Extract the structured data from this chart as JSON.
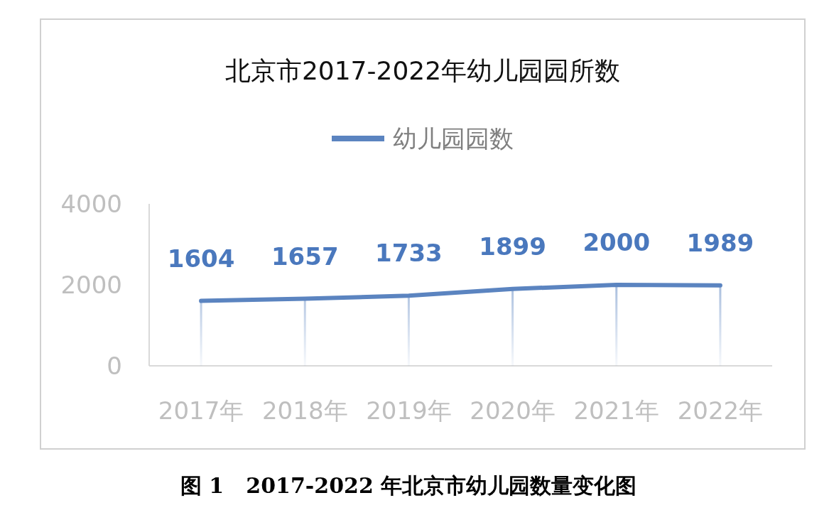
{
  "chart_data": {
    "type": "line",
    "title": "北京市2017-2022年幼儿园园所数",
    "categories": [
      "2017年",
      "2018年",
      "2019年",
      "2020年",
      "2021年",
      "2022年"
    ],
    "series": [
      {
        "name": "幼儿园园数",
        "color": "#5b84c0",
        "values": [
          1604,
          1657,
          1733,
          1899,
          2000,
          1989
        ]
      }
    ],
    "ylim": [
      0,
      4000
    ],
    "yticks": [
      0,
      2000,
      4000
    ],
    "data_labels": true,
    "legend": "top",
    "grid": false,
    "marker": "none",
    "annotations": [
      "图 1   2017-2022 年北京市幼儿园数量变化图"
    ]
  }
}
